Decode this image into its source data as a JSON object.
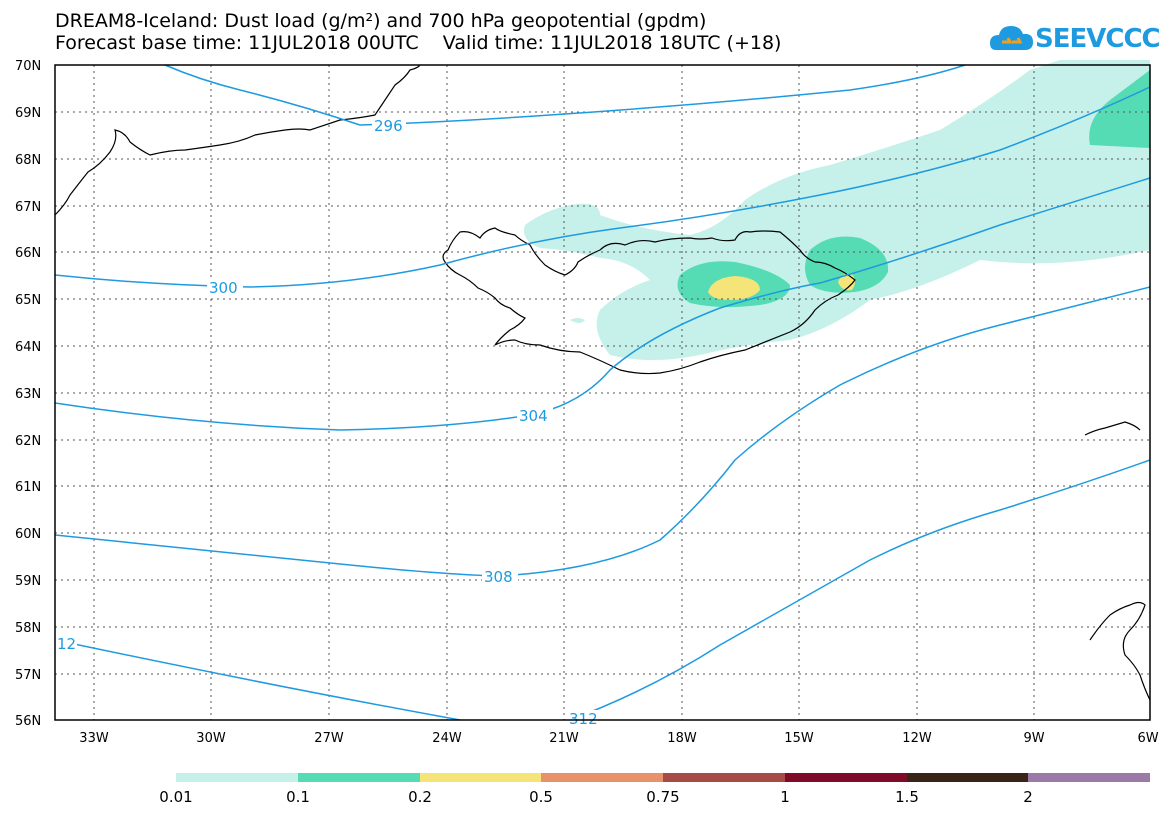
{
  "header": {
    "title_line1": "DREAM8-Iceland: Dust load (g/m²) and 700 hPa geopotential (gpdm)",
    "title_line2": "Forecast base time: 11JUL2018 00UTC    Valid time: 11JUL2018 18UTC (+18)"
  },
  "logo": {
    "text": "SEEVCCC",
    "icon": "cloud-logo-icon",
    "color": "#1e9be0"
  },
  "map": {
    "lat_labels": [
      "70N",
      "69N",
      "68N",
      "67N",
      "66N",
      "65N",
      "64N",
      "63N",
      "62N",
      "61N",
      "60N",
      "59N",
      "58N",
      "57N",
      "56N"
    ],
    "lon_labels": [
      "33W",
      "30W",
      "27W",
      "24W",
      "21W",
      "18W",
      "15W",
      "12W",
      "9W",
      "6W"
    ],
    "isoline_color": "#1e9be0",
    "isoline_labels": [
      "296",
      "300",
      "304",
      "308",
      "312",
      "12"
    ]
  },
  "colorbar": {
    "levels": [
      "0.01",
      "0.1",
      "0.2",
      "0.5",
      "0.75",
      "1",
      "1.5",
      "2"
    ],
    "colors": [
      "#c6f0ea",
      "#55dcb4",
      "#f5e478",
      "#e8916a",
      "#a64b45",
      "#7f0a2a",
      "#3a2417",
      "#9b7aa7"
    ]
  }
}
